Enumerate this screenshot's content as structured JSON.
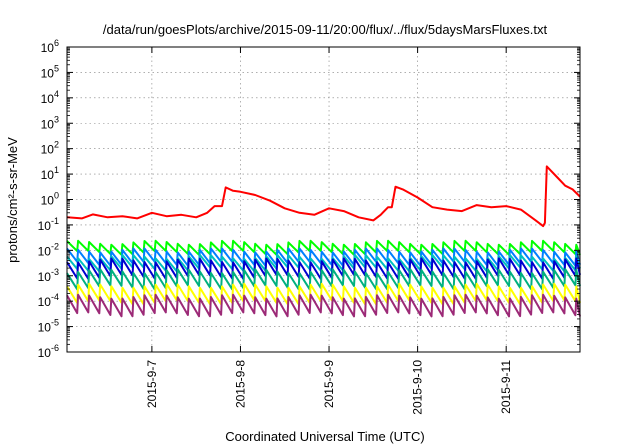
{
  "chart_data": {
    "type": "line",
    "title": "/data/run/goesPlots/archive/2015-09-11/20:00/flux/../flux/5daysMarsFluxes.txt",
    "xlabel": "Coordinated Universal Time (UTC)",
    "ylabel": "protons/cm²-s-sr-MeV",
    "y_scale": "log",
    "ylim": [
      1e-06,
      1000000.0
    ],
    "xlim": [
      "2015-09-06 01:00",
      "2015-09-11 20:00"
    ],
    "grid": true,
    "legend": "none",
    "y_ticks": [
      {
        "value": 1e-06,
        "base": "10",
        "exp": "-6"
      },
      {
        "value": 1e-05,
        "base": "10",
        "exp": "-5"
      },
      {
        "value": 0.0001,
        "base": "10",
        "exp": "-4"
      },
      {
        "value": 0.001,
        "base": "10",
        "exp": "-3"
      },
      {
        "value": 0.01,
        "base": "10",
        "exp": "-2"
      },
      {
        "value": 0.1,
        "base": "10",
        "exp": "-1"
      },
      {
        "value": 1.0,
        "base": "10",
        "exp": "0"
      },
      {
        "value": 10.0,
        "base": "10",
        "exp": "1"
      },
      {
        "value": 100.0,
        "base": "10",
        "exp": "2"
      },
      {
        "value": 1000.0,
        "base": "10",
        "exp": "3"
      },
      {
        "value": 10000.0,
        "base": "10",
        "exp": "4"
      },
      {
        "value": 100000.0,
        "base": "10",
        "exp": "5"
      },
      {
        "value": 1000000.0,
        "base": "10",
        "exp": "6"
      }
    ],
    "x_ticks": [
      {
        "value": "2015-09-07",
        "label": "2015-9-7"
      },
      {
        "value": "2015-09-08",
        "label": "2015-9-8"
      },
      {
        "value": "2015-09-09",
        "label": "2015-9-9"
      },
      {
        "value": "2015-09-10",
        "label": "2015-9-10"
      },
      {
        "value": "2015-09-11",
        "label": "2015-9-11"
      }
    ],
    "series": [
      {
        "color": "#ff0000",
        "points": [
          [
            "2015-09-06 01:00",
            0.2
          ],
          [
            "2015-09-06 05:00",
            0.18
          ],
          [
            "2015-09-06 08:00",
            0.26
          ],
          [
            "2015-09-06 12:00",
            0.2
          ],
          [
            "2015-09-06 16:00",
            0.22
          ],
          [
            "2015-09-06 20:00",
            0.18
          ],
          [
            "2015-09-07 00:00",
            0.3
          ],
          [
            "2015-09-07 04:00",
            0.22
          ],
          [
            "2015-09-07 08:00",
            0.25
          ],
          [
            "2015-09-07 12:00",
            0.2
          ],
          [
            "2015-09-07 15:00",
            0.3
          ],
          [
            "2015-09-07 17:00",
            0.55
          ],
          [
            "2015-09-07 19:00",
            0.55
          ],
          [
            "2015-09-07 20:00",
            3.0
          ],
          [
            "2015-09-07 22:00",
            2.2
          ],
          [
            "2015-09-08 00:00",
            2.0
          ],
          [
            "2015-09-08 04:00",
            1.5
          ],
          [
            "2015-09-08 08:00",
            0.9
          ],
          [
            "2015-09-08 12:00",
            0.45
          ],
          [
            "2015-09-08 16:00",
            0.3
          ],
          [
            "2015-09-08 20:00",
            0.25
          ],
          [
            "2015-09-09 00:00",
            0.45
          ],
          [
            "2015-09-09 04:00",
            0.35
          ],
          [
            "2015-09-09 08:00",
            0.2
          ],
          [
            "2015-09-09 12:00",
            0.15
          ],
          [
            "2015-09-09 14:00",
            0.25
          ],
          [
            "2015-09-09 16:00",
            0.5
          ],
          [
            "2015-09-09 17:00",
            0.5
          ],
          [
            "2015-09-09 18:00",
            3.2
          ],
          [
            "2015-09-09 20:00",
            2.5
          ],
          [
            "2015-09-10 00:00",
            1.2
          ],
          [
            "2015-09-10 04:00",
            0.5
          ],
          [
            "2015-09-10 08:00",
            0.4
          ],
          [
            "2015-09-10 12:00",
            0.35
          ],
          [
            "2015-09-10 16:00",
            0.6
          ],
          [
            "2015-09-10 20:00",
            0.5
          ],
          [
            "2015-09-11 00:00",
            0.55
          ],
          [
            "2015-09-11 04:00",
            0.4
          ],
          [
            "2015-09-11 08:00",
            0.15
          ],
          [
            "2015-09-11 10:00",
            0.09
          ],
          [
            "2015-09-11 10:30",
            0.12
          ],
          [
            "2015-09-11 11:00",
            20.0
          ],
          [
            "2015-09-11 14:00",
            7.0
          ],
          [
            "2015-09-11 16:00",
            3.5
          ],
          [
            "2015-09-11 18:00",
            2.5
          ],
          [
            "2015-09-11 20:00",
            1.3
          ]
        ]
      },
      {
        "color": "#00ff00",
        "pattern": "sawtooth",
        "peak": 0.02,
        "trough": 0.008,
        "period_hours": 3
      },
      {
        "color": "#0080ff",
        "pattern": "sawtooth",
        "peak": 0.01,
        "trough": 0.003,
        "period_hours": 3
      },
      {
        "color": "#00c0c0",
        "pattern": "sawtooth",
        "peak": 0.0055,
        "trough": 0.0018,
        "period_hours": 3
      },
      {
        "color": "#0000d0",
        "pattern": "sawtooth",
        "peak": 0.004,
        "trough": 0.0009,
        "period_hours": 3
      },
      {
        "color": "#00b080",
        "pattern": "sawtooth",
        "peak": 0.0015,
        "trough": 0.00035,
        "period_hours": 3
      },
      {
        "color": "#ffff00",
        "pattern": "sawtooth",
        "peak": 0.0004,
        "trough": 9e-05,
        "period_hours": 3
      },
      {
        "color": "#9c2a77",
        "pattern": "sawtooth",
        "peak": 0.00015,
        "trough": 3e-05,
        "period_hours": 3
      }
    ]
  }
}
